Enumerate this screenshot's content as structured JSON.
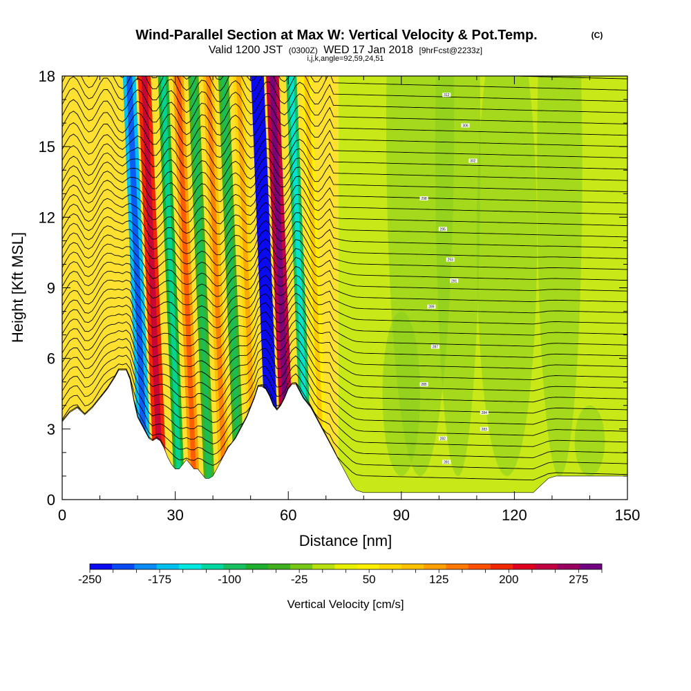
{
  "chart_data": {
    "type": "heatmap",
    "title": "Wind-Parallel Section at Max W: Vertical Velocity & Pot.Temp.",
    "title_mark": "(C)",
    "subtitle": {
      "valid": "Valid 1200 JST",
      "utc": "(0300Z)",
      "date": "WED 17 Jan 2018",
      "fcst": "[9hrFcst@2233z]"
    },
    "subtitle2": "i,j,k,angle=92,59,24,51",
    "xlabel": "Distance [nm]",
    "ylabel": "Height [Kft MSL]",
    "xlim": [
      0,
      150
    ],
    "ylim": [
      0,
      18
    ],
    "xticks": [
      0,
      30,
      60,
      90,
      120,
      150
    ],
    "yticks": [
      0,
      3,
      6,
      9,
      12,
      15,
      18
    ],
    "colorbar": {
      "label": "Vertical Velocity [cm/s]",
      "levels": [
        -250,
        -225,
        -200,
        -175,
        -150,
        -125,
        -100,
        -75,
        -50,
        -25,
        0,
        25,
        50,
        75,
        100,
        125,
        150,
        175,
        200,
        225,
        250,
        275,
        300
      ],
      "tick_labels": [
        "-250",
        "-175",
        "-100",
        "-25",
        "50",
        "125",
        "200",
        "275"
      ],
      "colors": [
        "#0a0af0",
        "#0a4af5",
        "#0a8af5",
        "#00c0f0",
        "#00e8e0",
        "#00d8a0",
        "#18c060",
        "#20b030",
        "#40b020",
        "#78c818",
        "#b8e010",
        "#e8f000",
        "#fff000",
        "#ffd800",
        "#ffc000",
        "#ffa000",
        "#ff7800",
        "#ff5000",
        "#f02800",
        "#e00020",
        "#c00040",
        "#9a0060",
        "#700080"
      ]
    },
    "wave_bands": [
      {
        "x": 20,
        "w": -175
      },
      {
        "x": 24,
        "w": 200
      },
      {
        "x": 29,
        "w": -75
      },
      {
        "x": 33,
        "w": 125
      },
      {
        "x": 37,
        "w": -50
      },
      {
        "x": 41,
        "w": 100
      },
      {
        "x": 45,
        "w": -50
      },
      {
        "x": 49,
        "w": 75
      },
      {
        "x": 54,
        "w": -250
      },
      {
        "x": 58,
        "w": 250
      },
      {
        "x": 63,
        "w": -100
      },
      {
        "x": 67,
        "w": 50
      }
    ],
    "terrain": [
      [
        0,
        3.3
      ],
      [
        2,
        3.7
      ],
      [
        4,
        3.9
      ],
      [
        6,
        3.6
      ],
      [
        8,
        3.9
      ],
      [
        10,
        4.3
      ],
      [
        12,
        4.7
      ],
      [
        14,
        5.2
      ],
      [
        15,
        5.5
      ],
      [
        17,
        5.5
      ],
      [
        18,
        5.1
      ],
      [
        19,
        4.2
      ],
      [
        20,
        3.5
      ],
      [
        21,
        3.2
      ],
      [
        22,
        2.9
      ],
      [
        23,
        2.6
      ],
      [
        24,
        2.5
      ],
      [
        25,
        2.6
      ],
      [
        26,
        2.5
      ],
      [
        27,
        2.2
      ],
      [
        28,
        1.8
      ],
      [
        29,
        1.5
      ],
      [
        30,
        1.3
      ],
      [
        31,
        1.3
      ],
      [
        32,
        1.5
      ],
      [
        33,
        1.7
      ],
      [
        34,
        1.5
      ],
      [
        35,
        1.3
      ],
      [
        36,
        1.3
      ],
      [
        37,
        1.1
      ],
      [
        38,
        0.9
      ],
      [
        39,
        0.9
      ],
      [
        40,
        1.0
      ],
      [
        41,
        1.3
      ],
      [
        42,
        1.6
      ],
      [
        43,
        1.9
      ],
      [
        44,
        2.2
      ],
      [
        45,
        2.4
      ],
      [
        46,
        2.6
      ],
      [
        47,
        2.9
      ],
      [
        48,
        3.2
      ],
      [
        49,
        3.5
      ],
      [
        50,
        3.9
      ],
      [
        51,
        4.3
      ],
      [
        52,
        4.8
      ],
      [
        53,
        4.8
      ],
      [
        54,
        4.7
      ],
      [
        55,
        4.4
      ],
      [
        56,
        4.0
      ],
      [
        57,
        3.8
      ],
      [
        58,
        4.0
      ],
      [
        59,
        4.3
      ],
      [
        60,
        4.7
      ],
      [
        61,
        4.9
      ],
      [
        62,
        4.9
      ],
      [
        63,
        4.6
      ],
      [
        64,
        4.3
      ],
      [
        65,
        4.1
      ],
      [
        66,
        3.9
      ],
      [
        67,
        3.6
      ],
      [
        68,
        3.3
      ],
      [
        69,
        3.0
      ],
      [
        70,
        2.7
      ],
      [
        71,
        2.4
      ],
      [
        72,
        2.1
      ],
      [
        73,
        1.8
      ],
      [
        74,
        1.5
      ],
      [
        75,
        1.2
      ],
      [
        76,
        0.9
      ],
      [
        77,
        0.6
      ],
      [
        78,
        0.4
      ],
      [
        80,
        0.3
      ],
      [
        95,
        0.3
      ],
      [
        125,
        0.3
      ],
      [
        127,
        0.6
      ],
      [
        129,
        0.9
      ],
      [
        131,
        1.0
      ],
      [
        150,
        1.0
      ]
    ],
    "isentrope_labels": [
      {
        "x": 102,
        "y": 17.2,
        "text": "312"
      },
      {
        "x": 107,
        "y": 15.9,
        "text": "306"
      },
      {
        "x": 109,
        "y": 14.4,
        "text": "302"
      },
      {
        "x": 96,
        "y": 12.8,
        "text": "298"
      },
      {
        "x": 101,
        "y": 11.5,
        "text": "295"
      },
      {
        "x": 103,
        "y": 10.2,
        "text": "293"
      },
      {
        "x": 104,
        "y": 9.3,
        "text": "291"
      },
      {
        "x": 98,
        "y": 8.2,
        "text": "289"
      },
      {
        "x": 99,
        "y": 6.5,
        "text": "287"
      },
      {
        "x": 96,
        "y": 4.9,
        "text": "285"
      },
      {
        "x": 112,
        "y": 3.7,
        "text": "284"
      },
      {
        "x": 112,
        "y": 3.0,
        "text": "283"
      },
      {
        "x": 101,
        "y": 2.6,
        "text": "282"
      },
      {
        "x": 102,
        "y": 1.6,
        "text": "281"
      }
    ]
  }
}
